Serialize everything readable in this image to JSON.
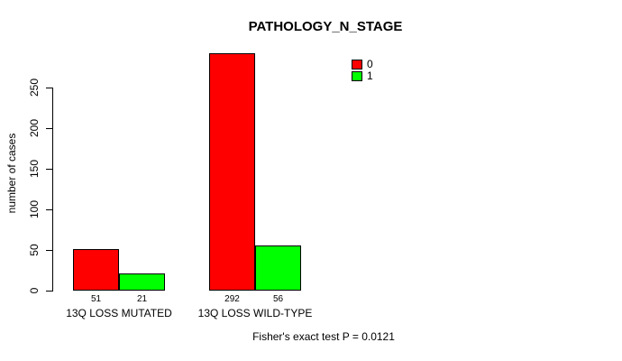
{
  "chart_data": {
    "type": "bar",
    "title": "PATHOLOGY_N_STAGE",
    "ylabel": "number of cases",
    "xlabel": "",
    "categories": [
      "13Q LOSS MUTATED",
      "13Q LOSS WILD-TYPE"
    ],
    "series": [
      {
        "name": "0",
        "color": "#FF0000",
        "values": [
          51,
          292
        ]
      },
      {
        "name": "1",
        "color": "#00FF00",
        "values": [
          21,
          56
        ]
      }
    ],
    "bar_value_labels": [
      [
        51,
        21
      ],
      [
        292,
        56
      ]
    ],
    "yticks": [
      0,
      50,
      100,
      150,
      200,
      250
    ],
    "ylim": [
      0,
      292
    ],
    "grid": false,
    "legend_position": "top-right",
    "annotation": "Fisher's exact test P = 0.0121"
  },
  "colors": {
    "background": "#FFFFFF",
    "axis": "#000000",
    "bar_border": "#000000",
    "text": "#000000",
    "series_0": "#FF0000",
    "series_1": "#00FF00"
  }
}
